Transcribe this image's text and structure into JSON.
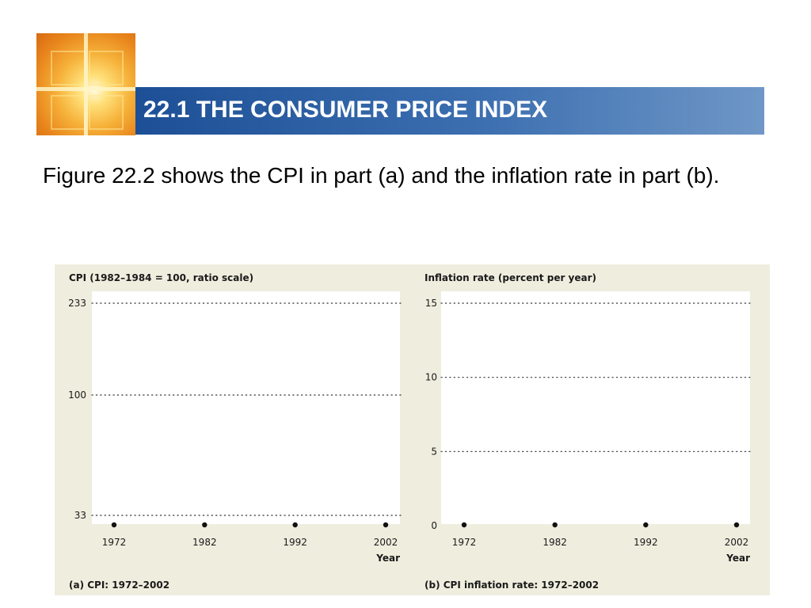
{
  "header": {
    "title": "22.1 THE CONSUMER PRICE INDEX"
  },
  "body": {
    "intro": "Figure 22.2 shows the CPI in part (a) and the inflation rate in part (b)."
  },
  "chart_data": [
    {
      "type": "scatter",
      "ylabel": "CPI (1982–1984 = 100, ratio scale)",
      "xlabel": "Year",
      "caption": "(a) CPI: 1972–2002",
      "x_ticks": [
        "1972",
        "1982",
        "1992",
        "2002"
      ],
      "y_ticks": [
        "33",
        "100",
        "233"
      ],
      "y_scale": "log",
      "ylim": [
        33,
        233
      ],
      "xlim": [
        1972,
        2002
      ],
      "grid": "horizontal dotted",
      "series": []
    },
    {
      "type": "scatter",
      "ylabel": "Inflation rate (percent per year)",
      "xlabel": "Year",
      "caption": "(b) CPI inflation rate: 1972–2002",
      "x_ticks": [
        "1972",
        "1982",
        "1992",
        "2002"
      ],
      "y_ticks": [
        "0",
        "5",
        "10",
        "15"
      ],
      "y_scale": "linear",
      "ylim": [
        0,
        15
      ],
      "xlim": [
        1972,
        2002
      ],
      "grid": "horizontal dotted",
      "series": []
    }
  ]
}
